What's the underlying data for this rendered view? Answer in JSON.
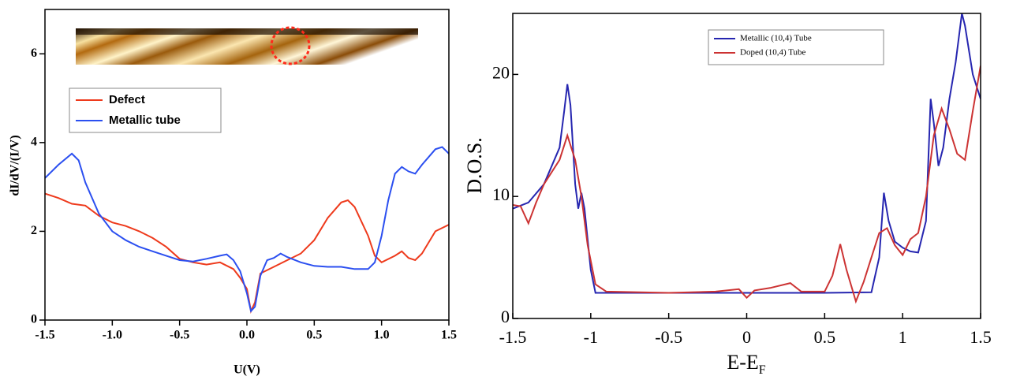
{
  "chart_data": [
    {
      "type": "line",
      "xlabel": "U(V)",
      "ylabel": "dI/dV/(I/V)",
      "xlim": [
        -1.5,
        1.5
      ],
      "ylim": [
        0,
        7
      ],
      "xticks": [
        -1.5,
        {
          "value": -1,
          "label": "-1.0"
        },
        -0.5,
        {
          "value": 0,
          "label": "0.0"
        },
        0.5,
        {
          "value": 1,
          "label": "1.0"
        },
        1.5
      ],
      "yticks": [
        0,
        2,
        4,
        6
      ],
      "legend": "upper left",
      "series": [
        {
          "name": "Defect",
          "color": "#ee3a1c",
          "x": [
            -1.5,
            -1.4,
            -1.3,
            -1.2,
            -1.1,
            -1.0,
            -0.9,
            -0.8,
            -0.7,
            -0.6,
            -0.5,
            -0.4,
            -0.3,
            -0.2,
            -0.1,
            -0.05,
            0.0,
            0.03,
            0.06,
            0.1,
            0.2,
            0.3,
            0.4,
            0.5,
            0.6,
            0.7,
            0.75,
            0.8,
            0.9,
            0.95,
            1.0,
            1.1,
            1.15,
            1.2,
            1.25,
            1.3,
            1.4,
            1.5
          ],
          "values": [
            2.85,
            2.75,
            2.62,
            2.58,
            2.35,
            2.2,
            2.12,
            2.0,
            1.85,
            1.65,
            1.38,
            1.3,
            1.25,
            1.3,
            1.15,
            0.95,
            0.7,
            0.2,
            0.4,
            1.05,
            1.2,
            1.35,
            1.5,
            1.8,
            2.3,
            2.65,
            2.7,
            2.55,
            1.9,
            1.45,
            1.3,
            1.45,
            1.55,
            1.4,
            1.35,
            1.5,
            2.0,
            2.15
          ]
        },
        {
          "name": "Metallic tube",
          "color": "#2b4ff0",
          "x": [
            -1.5,
            -1.4,
            -1.3,
            -1.25,
            -1.2,
            -1.1,
            -1.0,
            -0.9,
            -0.8,
            -0.7,
            -0.6,
            -0.5,
            -0.4,
            -0.3,
            -0.2,
            -0.15,
            -0.1,
            -0.05,
            0.0,
            0.03,
            0.06,
            0.1,
            0.15,
            0.2,
            0.25,
            0.3,
            0.4,
            0.5,
            0.6,
            0.7,
            0.8,
            0.9,
            0.95,
            1.0,
            1.05,
            1.1,
            1.15,
            1.2,
            1.25,
            1.3,
            1.4,
            1.45,
            1.5
          ],
          "values": [
            3.2,
            3.5,
            3.75,
            3.6,
            3.1,
            2.4,
            2.0,
            1.8,
            1.65,
            1.55,
            1.45,
            1.35,
            1.32,
            1.38,
            1.45,
            1.48,
            1.35,
            1.1,
            0.6,
            0.2,
            0.3,
            1.0,
            1.35,
            1.4,
            1.5,
            1.42,
            1.3,
            1.22,
            1.2,
            1.2,
            1.15,
            1.15,
            1.3,
            1.9,
            2.7,
            3.3,
            3.45,
            3.35,
            3.3,
            3.5,
            3.85,
            3.9,
            3.75
          ]
        }
      ]
    },
    {
      "type": "line",
      "xlabel": {
        "main": "E-E",
        "sub": "F"
      },
      "ylabel": "D.O.S.",
      "xlim": [
        -1.5,
        1.5
      ],
      "ylim": [
        0,
        25
      ],
      "xticks": [
        -1.5,
        -1,
        -0.5,
        0,
        0.5,
        1,
        1.5
      ],
      "yticks": [
        0,
        10,
        20
      ],
      "legend": "upper center",
      "series": [
        {
          "name": "Metallic (10,4) Tube",
          "color": "#2626b0",
          "x": [
            -1.5,
            -1.4,
            -1.3,
            -1.2,
            -1.17,
            -1.15,
            -1.13,
            -1.1,
            -1.08,
            -1.06,
            -1.04,
            -1.0,
            -0.97,
            -0.5,
            0,
            0.5,
            0.8,
            0.85,
            0.88,
            0.91,
            0.95,
            1.0,
            1.05,
            1.1,
            1.15,
            1.18,
            1.2,
            1.23,
            1.26,
            1.3,
            1.34,
            1.38,
            1.4,
            1.45,
            1.5
          ],
          "values": [
            9,
            9.5,
            11,
            14,
            17,
            19.2,
            17.5,
            11,
            9,
            10.3,
            9,
            4,
            2.1,
            2.1,
            2.1,
            2.1,
            2.15,
            5,
            10.3,
            8,
            6.3,
            5.8,
            5.5,
            5.4,
            8,
            18,
            16,
            12.5,
            14,
            18,
            21,
            25,
            24,
            20,
            18
          ]
        },
        {
          "name": "Doped (10,4) Tube",
          "color": "#cc3333",
          "x": [
            -1.5,
            -1.45,
            -1.4,
            -1.35,
            -1.3,
            -1.2,
            -1.15,
            -1.1,
            -1.06,
            -1.02,
            -0.97,
            -0.9,
            -0.5,
            -0.2,
            -0.05,
            0,
            0.05,
            0.15,
            0.28,
            0.35,
            0.5,
            0.55,
            0.6,
            0.64,
            0.7,
            0.75,
            0.8,
            0.85,
            0.9,
            0.95,
            1.0,
            1.05,
            1.1,
            1.15,
            1.2,
            1.25,
            1.3,
            1.35,
            1.4,
            1.45,
            1.5
          ],
          "values": [
            9.3,
            9.2,
            7.8,
            9.5,
            11,
            13,
            15,
            13,
            10,
            6,
            2.8,
            2.2,
            2.1,
            2.2,
            2.4,
            1.7,
            2.3,
            2.5,
            2.9,
            2.2,
            2.2,
            3.5,
            6.1,
            4,
            1.4,
            3,
            5,
            7,
            7.4,
            6,
            5.2,
            6.5,
            7,
            10,
            15,
            17.2,
            15.5,
            13.5,
            13,
            17,
            20.7
          ]
        }
      ]
    }
  ]
}
